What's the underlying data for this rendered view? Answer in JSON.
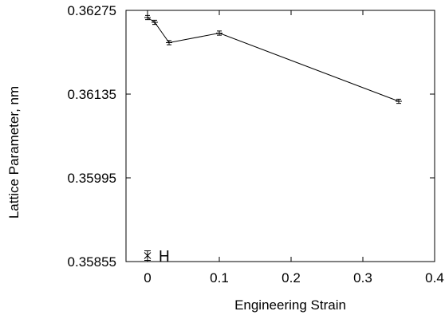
{
  "chart_data": {
    "type": "line",
    "title": "",
    "xlabel": "Engineering Strain",
    "ylabel": "Lattice Parameter, nm",
    "xlim": [
      -0.03,
      0.4
    ],
    "ylim": [
      0.35855,
      0.36275
    ],
    "xticks": [
      0,
      0.1,
      0.2,
      0.3,
      0.4
    ],
    "xtick_labels": [
      "0",
      "0.1",
      "0.2",
      "0.3",
      "0.4"
    ],
    "yticks": [
      0.35855,
      0.35995,
      0.36135,
      0.36275
    ],
    "ytick_labels": [
      "0.35855",
      "0.35995",
      "0.36135",
      "0.36275"
    ],
    "grid": false,
    "legend": "none",
    "series": [
      {
        "x": [
          0,
          0.01,
          0.03,
          0.1,
          0.35
        ],
        "y": [
          0.36263,
          0.36255,
          0.36221,
          0.36237,
          0.36123
        ],
        "yerr": [
          3.5e-05,
          3.5e-05,
          3.5e-05,
          3.5e-05,
          3.5e-05
        ],
        "color": "#000000",
        "marker": "plus-errorbar"
      }
    ],
    "annotations": [
      {
        "text": "H",
        "marker_x": 0,
        "marker_y": 0.35865,
        "marker": "asterisk-errorbar"
      }
    ]
  }
}
